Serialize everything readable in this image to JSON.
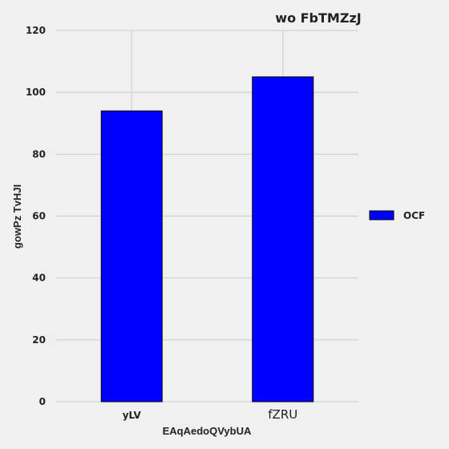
{
  "chart_data": {
    "type": "bar",
    "title": "wo FbTMZzJ",
    "xlabel": "EAqAedoQVybUA",
    "ylabel": "gowPz TvHJI",
    "categories": [
      "yLV",
      "fZRU"
    ],
    "series": [
      {
        "name": "OCF",
        "values": [
          94,
          105
        ],
        "color": "#0000ff"
      }
    ],
    "ylim": [
      0,
      120
    ],
    "yticks": [
      0,
      20,
      40,
      60,
      80,
      100,
      120
    ],
    "grid": true,
    "legend_position": "right"
  },
  "colors": {
    "background": "#f0f0f0",
    "grid": "#cbcbcb",
    "bar_edge": "#000000",
    "text": "#222222"
  }
}
